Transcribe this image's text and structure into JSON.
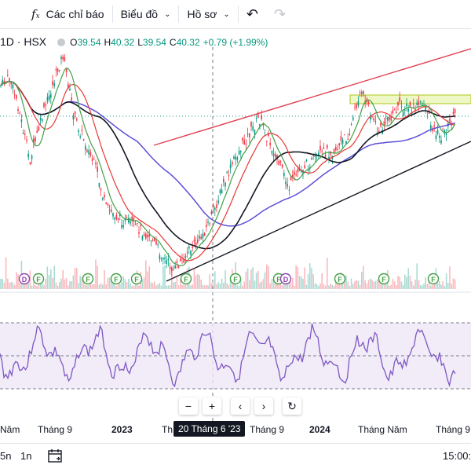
{
  "toolbar": {
    "indicators_label": "Các chỉ báo",
    "chart_type_label": "Biểu đồ",
    "profile_label": "Hồ sơ"
  },
  "legend": {
    "symbol": "1D · HSX",
    "open_label": "O",
    "open": "39.54",
    "high_label": "H",
    "high": "40.32",
    "low_label": "L",
    "low": "39.54",
    "close_label": "C",
    "close": "40.32",
    "change": "+0.79 (+1.99%)"
  },
  "zoom": {
    "minus": "−",
    "plus": "+",
    "prev": "‹",
    "next": "›",
    "reset": "↻"
  },
  "x_axis": {
    "labels": [
      "Năm",
      "Tháng 9",
      "2023",
      "Th",
      "Tháng 9",
      "2024",
      "Tháng Năm",
      "Tháng 9"
    ],
    "crosshair_date": "20 Tháng 6 '23"
  },
  "bottom": {
    "range_5n": "5n",
    "range_1n": "1n",
    "time": "15:00:"
  },
  "markers": [
    "D",
    "F",
    "F",
    "F",
    "F",
    "F",
    "F",
    "F",
    "D",
    "F",
    "F",
    "F",
    "F"
  ],
  "colors": {
    "up": "#089981",
    "down": "#f23645",
    "ma_fast": "#43a047",
    "ma_mid": "#e53935",
    "ma_slow": "#131722",
    "ma_long": "#5c4fd6",
    "rsi": "#7e57c2"
  }
}
